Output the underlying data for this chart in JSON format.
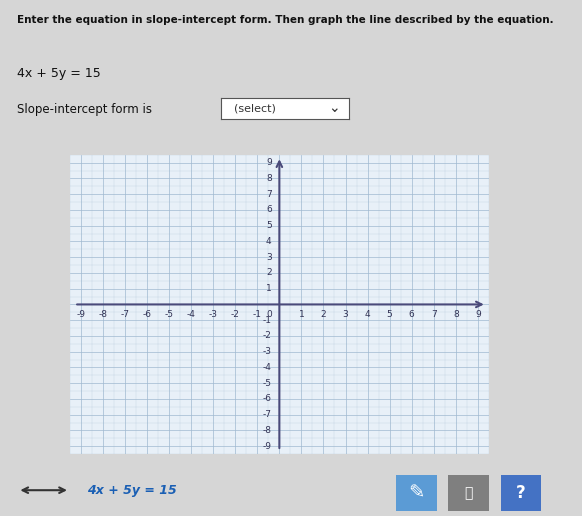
{
  "title_text": "Enter the equation in slope-intercept form. Then graph the line described by the equation.",
  "equation_text": "4x + 5y = 15",
  "label_text": "Slope-intercept form is",
  "dropdown_text": "(select)",
  "x_min": -9,
  "x_max": 9,
  "y_min": -9,
  "y_max": 9,
  "background_color": "#d6d6d6",
  "grid_color": "#a0b8d0",
  "axis_color": "#4a4a7a",
  "grid_bg_color": "#e8f0f8",
  "footer_equation": "4x + 5y = 15",
  "footer_color": "#1a5fb4"
}
